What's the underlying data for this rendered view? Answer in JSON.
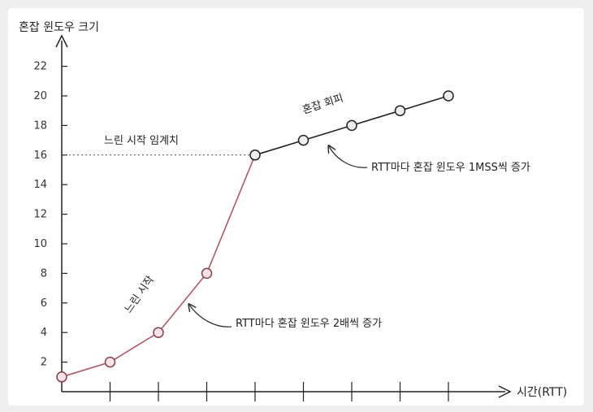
{
  "chart_data": {
    "type": "line",
    "ylabel": "혼잡 윈도우 크기",
    "xlabel": "시간(RTT)",
    "yticks": [
      2,
      4,
      6,
      8,
      10,
      12,
      14,
      16,
      18,
      20,
      22
    ],
    "ylim": [
      0,
      24
    ],
    "xlim": [
      0,
      8
    ],
    "x_tick_count": 8,
    "grid": false,
    "legend": "none",
    "series": [
      {
        "points": [
          {
            "x": 0,
            "y": 1
          },
          {
            "x": 1,
            "y": 2
          },
          {
            "x": 2,
            "y": 4
          },
          {
            "x": 3,
            "y": 8
          },
          {
            "x": 4,
            "y": 16
          }
        ],
        "color": "#b05a68",
        "marker_fill": "#f6e3e7"
      },
      {
        "points": [
          {
            "x": 4,
            "y": 16
          },
          {
            "x": 5,
            "y": 17
          },
          {
            "x": 6,
            "y": 18
          },
          {
            "x": 7,
            "y": 19
          },
          {
            "x": 8,
            "y": 20
          }
        ],
        "color": "#222222",
        "marker_fill": "#eeeeee"
      }
    ],
    "threshold": {
      "y": 16,
      "label": "느린 시작 임계치",
      "style": "dotted"
    },
    "annotations": [
      {
        "id": "slow-start",
        "text": "느린 시작"
      },
      {
        "id": "congestion-avoidance",
        "text": "혼잡 회피"
      },
      {
        "id": "note-exponential",
        "text": "RTT마다 혼잡 윈도우 2배씩 증가"
      },
      {
        "id": "note-linear",
        "text": "RTT마다 혼잡 윈도우 1MSS씩 증가"
      }
    ]
  }
}
